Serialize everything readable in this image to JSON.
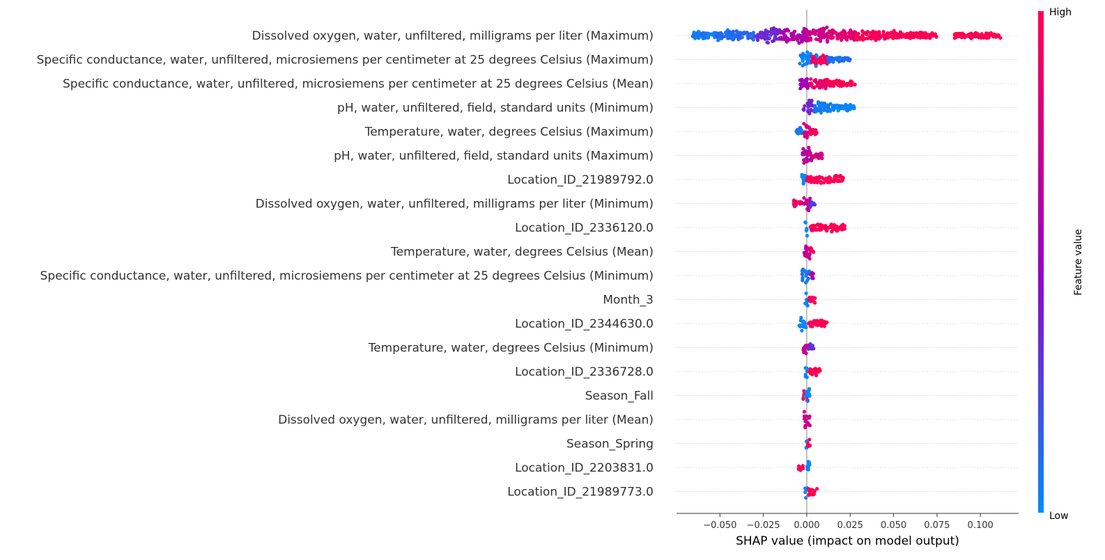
{
  "chart_data": {
    "type": "scatter",
    "subtype": "shap-beeswarm-summary",
    "xlabel": "SHAP value (impact on model output)",
    "xlim": [
      -0.075,
      0.122
    ],
    "x_ticks": [
      -0.05,
      -0.025,
      0.0,
      0.025,
      0.05,
      0.075,
      0.1
    ],
    "x_tick_labels": [
      "−0.050",
      "−0.025",
      "0.000",
      "0.025",
      "0.050",
      "0.075",
      "0.100"
    ],
    "zero_line": 0,
    "grid": false,
    "legend": {
      "type": "colorbar",
      "label": "Feature value",
      "high_label": "High",
      "low_label": "Low",
      "placement": "right",
      "colors": {
        "low": "#008bfb",
        "mid": "#9b00c0",
        "high": "#ff0051"
      }
    },
    "features": [
      {
        "name": "Dissolved oxygen, water, unfiltered, milligrams per liter (Maximum)",
        "segments": [
          {
            "from": -0.066,
            "to": -0.052,
            "color": 0.05,
            "spread": 0.35
          },
          {
            "from": -0.052,
            "to": -0.03,
            "color": 0.12,
            "spread": 0.55
          },
          {
            "from": -0.03,
            "to": -0.015,
            "color": 0.35,
            "spread": 0.9
          },
          {
            "from": -0.015,
            "to": 0.0,
            "color": 0.6,
            "spread": 1.0
          },
          {
            "from": 0.0,
            "to": 0.012,
            "color": 0.75,
            "spread": 1.0
          },
          {
            "from": 0.012,
            "to": 0.028,
            "color": 0.85,
            "spread": 0.7
          },
          {
            "from": 0.028,
            "to": 0.055,
            "color": 0.97,
            "spread": 0.5
          },
          {
            "from": 0.055,
            "to": 0.075,
            "color": 1.0,
            "spread": 0.3
          },
          {
            "from": 0.085,
            "to": 0.112,
            "color": 1.0,
            "spread": 0.25
          }
        ]
      },
      {
        "name": "Specific conductance, water, unfiltered, microsiemens per centimeter at 25 degrees Celsius (Maximum)",
        "segments": [
          {
            "from": -0.005,
            "to": 0.0,
            "color": 0.02,
            "spread": 1.0
          },
          {
            "from": 0.0,
            "to": 0.006,
            "color": 0.05,
            "spread": 0.8
          },
          {
            "from": 0.003,
            "to": 0.012,
            "color": 0.95,
            "spread": 0.5
          },
          {
            "from": 0.012,
            "to": 0.025,
            "color": 0.1,
            "spread": 0.2
          }
        ]
      },
      {
        "name": "Specific conductance, water, unfiltered, microsiemens per centimeter at 25 degrees Celsius (Mean)",
        "segments": [
          {
            "from": -0.004,
            "to": 0.002,
            "color": 0.55,
            "spread": 1.0
          },
          {
            "from": 0.002,
            "to": 0.012,
            "color": 0.9,
            "spread": 0.6
          },
          {
            "from": 0.012,
            "to": 0.028,
            "color": 1.0,
            "spread": 0.3
          }
        ]
      },
      {
        "name": "pH, water, unfiltered, field, standard units (Minimum)",
        "segments": [
          {
            "from": -0.002,
            "to": 0.004,
            "color": 0.35,
            "spread": 1.0
          },
          {
            "from": 0.004,
            "to": 0.015,
            "color": 0.05,
            "spread": 0.6
          },
          {
            "from": 0.015,
            "to": 0.028,
            "color": 0.02,
            "spread": 0.3
          }
        ]
      },
      {
        "name": "Temperature, water, degrees Celsius (Maximum)",
        "segments": [
          {
            "from": -0.006,
            "to": -0.002,
            "color": 0.05,
            "spread": 0.5
          },
          {
            "from": -0.002,
            "to": 0.002,
            "color": 0.8,
            "spread": 1.0
          },
          {
            "from": 0.002,
            "to": 0.006,
            "color": 0.95,
            "spread": 0.4
          }
        ]
      },
      {
        "name": "pH, water, unfiltered, field, standard units (Maximum)",
        "segments": [
          {
            "from": -0.003,
            "to": 0.003,
            "color": 0.65,
            "spread": 1.0
          },
          {
            "from": 0.003,
            "to": 0.009,
            "color": 0.8,
            "spread": 0.4
          }
        ]
      },
      {
        "name": "Location_ID_21989792.0",
        "segments": [
          {
            "from": -0.003,
            "to": 0.0,
            "color": 0.0,
            "spread": 1.0
          },
          {
            "from": 0.0,
            "to": 0.021,
            "color": 1.0,
            "spread": 0.4
          }
        ]
      },
      {
        "name": "Dissolved oxygen, water, unfiltered, milligrams per liter (Minimum)",
        "segments": [
          {
            "from": -0.008,
            "to": -0.002,
            "color": 0.95,
            "spread": 0.3
          },
          {
            "from": -0.002,
            "to": 0.002,
            "color": 0.7,
            "spread": 1.0
          },
          {
            "from": 0.002,
            "to": 0.005,
            "color": 0.3,
            "spread": 0.4
          }
        ]
      },
      {
        "name": "Location_ID_2336120.0",
        "segments": [
          {
            "from": -0.001,
            "to": 0.0005,
            "color": 0.0,
            "spread": 1.0
          },
          {
            "from": 0.002,
            "to": 0.022,
            "color": 1.0,
            "spread": 0.4
          }
        ]
      },
      {
        "name": "Temperature, water, degrees Celsius (Mean)",
        "segments": [
          {
            "from": -0.002,
            "to": 0.002,
            "color": 0.7,
            "spread": 1.0
          },
          {
            "from": 0.002,
            "to": 0.004,
            "color": 0.95,
            "spread": 0.4
          }
        ]
      },
      {
        "name": "Specific conductance, water, unfiltered, microsiemens per centimeter at 25 degrees Celsius (Minimum)",
        "segments": [
          {
            "from": -0.003,
            "to": 0.002,
            "color": 0.1,
            "spread": 1.0
          },
          {
            "from": 0.002,
            "to": 0.004,
            "color": 0.6,
            "spread": 0.4
          }
        ]
      },
      {
        "name": "Month_3",
        "segments": [
          {
            "from": -0.001,
            "to": 0.0005,
            "color": 0.0,
            "spread": 1.0
          },
          {
            "from": 0.001,
            "to": 0.005,
            "color": 1.0,
            "spread": 0.4
          }
        ]
      },
      {
        "name": "Location_ID_2344630.0",
        "segments": [
          {
            "from": -0.005,
            "to": 0.0,
            "color": 0.0,
            "spread": 1.0
          },
          {
            "from": 0.001,
            "to": 0.012,
            "color": 1.0,
            "spread": 0.4
          }
        ]
      },
      {
        "name": "Temperature, water, degrees Celsius (Minimum)",
        "segments": [
          {
            "from": -0.002,
            "to": 0.001,
            "color": 0.75,
            "spread": 1.0
          },
          {
            "from": 0.001,
            "to": 0.004,
            "color": 0.3,
            "spread": 0.4
          }
        ]
      },
      {
        "name": "Location_ID_2336728.0",
        "segments": [
          {
            "from": -0.001,
            "to": 0.0005,
            "color": 0.0,
            "spread": 1.0
          },
          {
            "from": 0.001,
            "to": 0.008,
            "color": 1.0,
            "spread": 0.4
          }
        ]
      },
      {
        "name": "Season_Fall",
        "segments": [
          {
            "from": -0.002,
            "to": 0.001,
            "color": 0.95,
            "spread": 0.5
          },
          {
            "from": -0.001,
            "to": 0.002,
            "color": 0.0,
            "spread": 1.0
          }
        ]
      },
      {
        "name": "Dissolved oxygen, water, unfiltered, milligrams per liter (Mean)",
        "segments": [
          {
            "from": -0.002,
            "to": 0.002,
            "color": 0.75,
            "spread": 1.0
          }
        ]
      },
      {
        "name": "Season_Spring",
        "segments": [
          {
            "from": -0.001,
            "to": 0.0005,
            "color": 0.0,
            "spread": 1.0
          },
          {
            "from": 0.0005,
            "to": 0.002,
            "color": 1.0,
            "spread": 0.4
          }
        ]
      },
      {
        "name": "Location_ID_2203831.0",
        "segments": [
          {
            "from": -0.005,
            "to": -0.002,
            "color": 1.0,
            "spread": 0.3
          },
          {
            "from": -0.001,
            "to": 0.002,
            "color": 0.0,
            "spread": 1.0
          }
        ]
      },
      {
        "name": "Location_ID_21989773.0",
        "segments": [
          {
            "from": -0.001,
            "to": 0.0005,
            "color": 0.0,
            "spread": 1.0
          },
          {
            "from": 0.001,
            "to": 0.006,
            "color": 1.0,
            "spread": 0.5
          }
        ]
      }
    ]
  }
}
